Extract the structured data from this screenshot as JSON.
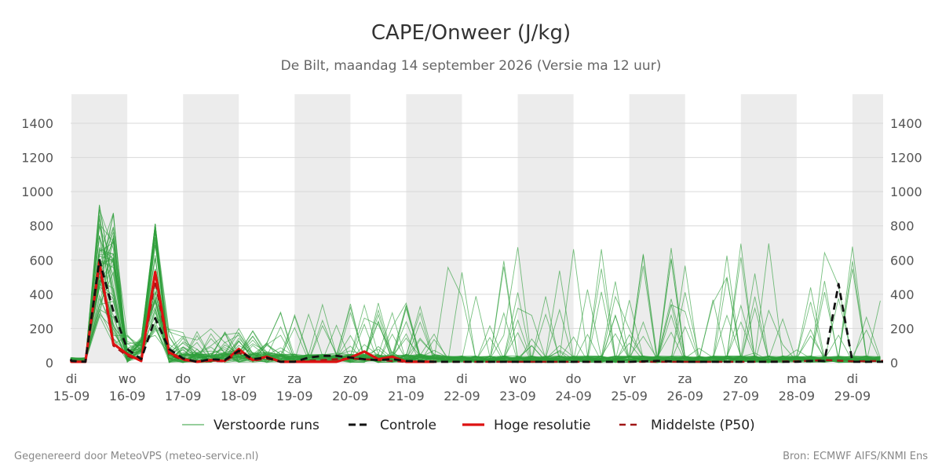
{
  "chart_data": {
    "type": "line",
    "title": "CAPE/Onweer (J/kg)",
    "subtitle": "De Bilt, maandag 14 september 2026 (Versie ma 12 uur)",
    "ylim": [
      0,
      1570
    ],
    "yticks": [
      0,
      200,
      400,
      600,
      800,
      1000,
      1200,
      1400
    ],
    "xlim": [
      -0.015,
      14.55
    ],
    "x_ticks": [
      {
        "day": "di",
        "date": "15-09",
        "x": 0
      },
      {
        "day": "wo",
        "date": "16-09",
        "x": 1
      },
      {
        "day": "do",
        "date": "17-09",
        "x": 2
      },
      {
        "day": "vr",
        "date": "18-09",
        "x": 3
      },
      {
        "day": "za",
        "date": "19-09",
        "x": 4
      },
      {
        "day": "zo",
        "date": "20-09",
        "x": 5
      },
      {
        "day": "ma",
        "date": "21-09",
        "x": 6
      },
      {
        "day": "di",
        "date": "22-09",
        "x": 7
      },
      {
        "day": "wo",
        "date": "23-09",
        "x": 8
      },
      {
        "day": "do",
        "date": "24-09",
        "x": 9
      },
      {
        "day": "vr",
        "date": "25-09",
        "x": 10
      },
      {
        "day": "za",
        "date": "26-09",
        "x": 11
      },
      {
        "day": "zo",
        "date": "27-09",
        "x": 12
      },
      {
        "day": "ma",
        "date": "28-09",
        "x": 13
      },
      {
        "day": "di",
        "date": "29-09",
        "x": 14
      }
    ],
    "shaded_days": [
      [
        0,
        1
      ],
      [
        2,
        3
      ],
      [
        4,
        5
      ],
      [
        6,
        7
      ],
      [
        8,
        9
      ],
      [
        10,
        11
      ],
      [
        12,
        13
      ],
      [
        14,
        14.55
      ]
    ],
    "grid": true,
    "legend_position": "bottom",
    "colors": {
      "ensemble": "#2e9e3a",
      "control": "#111111",
      "hires": "#dd1111",
      "median": "#a01515",
      "shade": "#ececec",
      "grid": "#d9d9d9"
    },
    "legend": [
      {
        "key": "ensemble",
        "label": "Verstoorde runs",
        "style": "thin"
      },
      {
        "key": "control",
        "label": "Controle",
        "style": "dash"
      },
      {
        "key": "hires",
        "label": "Hoge resolutie",
        "style": "solid"
      },
      {
        "key": "median",
        "label": "Middelste (P50)",
        "style": "dash"
      }
    ],
    "key_series": {
      "hires": {
        "x": [
          -0.25,
          0,
          0.25,
          0.5,
          0.75,
          1,
          1.25,
          1.5,
          1.75,
          2,
          2.25,
          2.5,
          2.75,
          3,
          3.25,
          3.5,
          3.75,
          4,
          4.25,
          4.5,
          4.75,
          5,
          5.25,
          5.5,
          5.75,
          6,
          6.25,
          6.5
        ],
        "y": [
          10,
          5,
          5,
          590,
          110,
          50,
          10,
          530,
          60,
          20,
          5,
          15,
          10,
          80,
          15,
          35,
          5,
          5,
          5,
          5,
          5,
          30,
          65,
          20,
          35,
          5,
          5,
          5
        ]
      },
      "control": {
        "x": [
          -0.25,
          0,
          0.25,
          0.5,
          0.75,
          1,
          1.25,
          1.5,
          1.75,
          2,
          2.25,
          2.5,
          2.75,
          3,
          3.25,
          3.5,
          3.75,
          4,
          4.25,
          4.5,
          4.75,
          5,
          5.25,
          5.5,
          5.75,
          6,
          6.5,
          7,
          7.5,
          8,
          8.5,
          9,
          9.5,
          10,
          10.5,
          11,
          11.5,
          12,
          12.5,
          13,
          13.25,
          13.5,
          13.75,
          14,
          14.25,
          14.55
        ],
        "y": [
          20,
          10,
          5,
          600,
          300,
          80,
          20,
          260,
          80,
          25,
          5,
          20,
          15,
          70,
          20,
          30,
          5,
          5,
          30,
          40,
          40,
          30,
          20,
          15,
          20,
          10,
          5,
          5,
          5,
          5,
          5,
          5,
          5,
          5,
          10,
          5,
          5,
          5,
          5,
          5,
          10,
          10,
          460,
          5,
          5,
          5
        ]
      },
      "median": {
        "x": [
          -0.25,
          0,
          0.25,
          0.5,
          0.75,
          1,
          1.25,
          1.5,
          1.75,
          2,
          2.25,
          2.5,
          2.75,
          3,
          3.25,
          3.5,
          3.75,
          4,
          4.5,
          5,
          5.25,
          5.5,
          6,
          6.5,
          7,
          7.5,
          8,
          9,
          10,
          11,
          12,
          13,
          13.5,
          14,
          14.55
        ],
        "y": [
          15,
          8,
          5,
          560,
          100,
          40,
          10,
          480,
          50,
          15,
          5,
          10,
          8,
          60,
          10,
          25,
          5,
          5,
          15,
          25,
          20,
          15,
          5,
          5,
          5,
          5,
          5,
          5,
          5,
          5,
          5,
          8,
          15,
          8,
          10
        ]
      }
    }
  },
  "footer": {
    "left": "Gegenereerd door MeteoVPS (meteo-service.nl)",
    "right": "Bron: ECMWF AIFS/KNMI Ens"
  }
}
